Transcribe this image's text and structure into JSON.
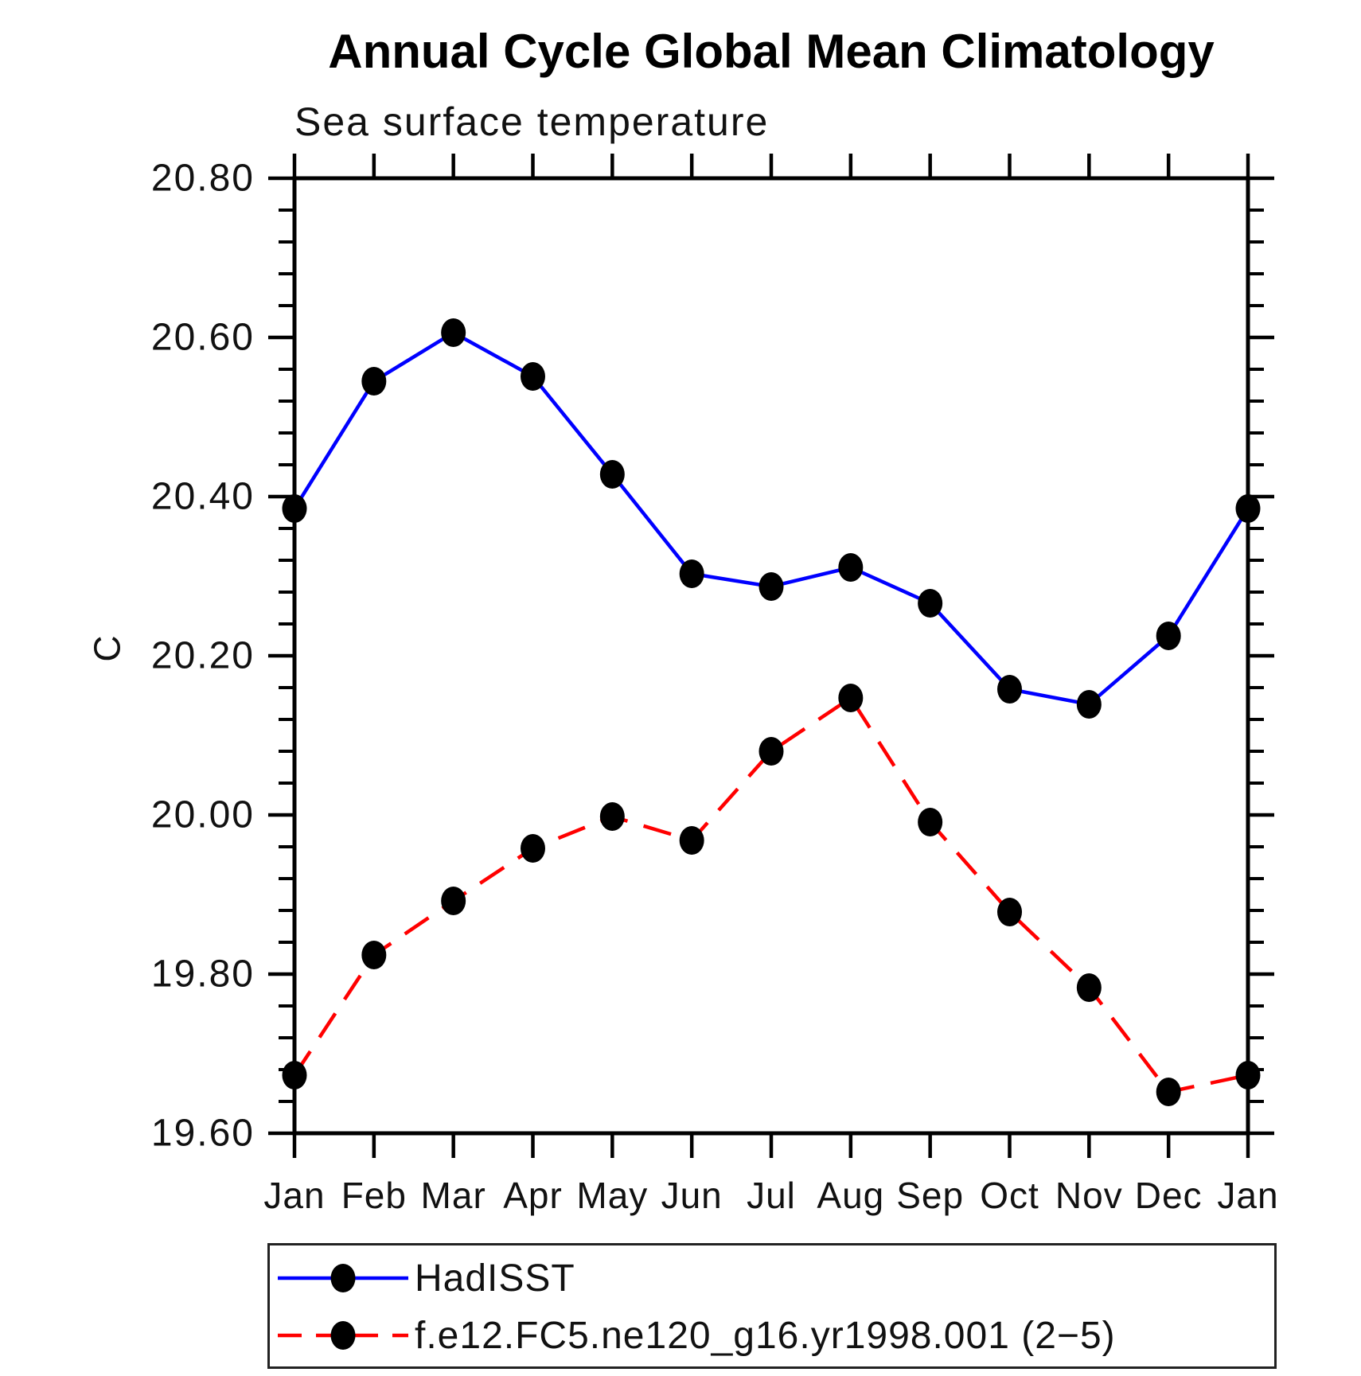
{
  "header": {
    "title": "Annual Cycle Global Mean Climatology",
    "subtitle": "Sea surface temperature"
  },
  "y_axis": {
    "title": "C",
    "tick_labels": [
      "19.60",
      "19.80",
      "20.00",
      "20.20",
      "20.40",
      "20.60",
      "20.80"
    ]
  },
  "legend": {
    "entries": [
      {
        "label": "HadISST",
        "color": "#0000ff",
        "style": "solid",
        "marker": "filled-circle",
        "marker_color": "#000000"
      },
      {
        "label": "f.e12.FC5.ne120_g16.yr1998.001 (2−5)",
        "color": "#ff0000",
        "style": "dashed",
        "marker": "filled-circle",
        "marker_color": "#000000"
      }
    ]
  },
  "chart_data": {
    "type": "line",
    "title": "Annual Cycle Global Mean Climatology",
    "subtitle": "Sea surface temperature",
    "ylabel": "C",
    "xlabel": "",
    "categories": [
      "Jan",
      "Feb",
      "Mar",
      "Apr",
      "May",
      "Jun",
      "Jul",
      "Aug",
      "Sep",
      "Oct",
      "Nov",
      "Dec",
      "Jan"
    ],
    "series": [
      {
        "name": "HadISST",
        "color": "#0000ff",
        "line_style": "solid",
        "marker": "filled-circle",
        "marker_color": "#000000",
        "values": [
          20.385,
          20.545,
          20.606,
          20.551,
          20.428,
          20.303,
          20.287,
          20.311,
          20.266,
          20.158,
          20.139,
          20.225,
          20.385
        ]
      },
      {
        "name": "f.e12.FC5.ne120_g16.yr1998.001 (2−5)",
        "color": "#ff0000",
        "line_style": "dashed",
        "marker": "filled-circle",
        "marker_color": "#000000",
        "values": [
          19.673,
          19.824,
          19.892,
          19.958,
          19.998,
          19.968,
          20.08,
          20.147,
          19.991,
          19.878,
          19.783,
          19.652,
          19.673
        ]
      }
    ],
    "ylim": [
      19.6,
      20.8
    ],
    "ytick_interval": 0.2,
    "yminor_interval": 0.04,
    "y_ticks": [
      {
        "label": "19.60",
        "value": 19.6
      },
      {
        "label": "19.80",
        "value": 19.8
      },
      {
        "label": "20.00",
        "value": 20.0
      },
      {
        "label": "20.20",
        "value": 20.2
      },
      {
        "label": "20.40",
        "value": 20.4
      },
      {
        "label": "20.60",
        "value": 20.6
      },
      {
        "label": "20.80",
        "value": 20.8
      }
    ],
    "grid": false,
    "legend_position": "bottom-left"
  }
}
